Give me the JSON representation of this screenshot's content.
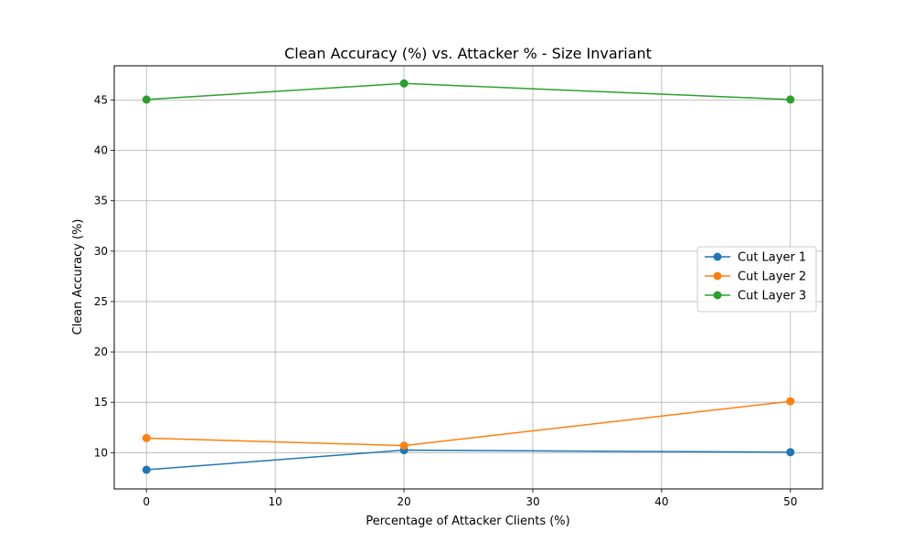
{
  "chart_data": {
    "type": "line",
    "title": "Clean Accuracy (%) vs. Attacker % - Size Invariant",
    "xlabel": "Percentage of Attacker Clients (%)",
    "ylabel": "Clean Accuracy (%)",
    "x": [
      0,
      20,
      50
    ],
    "xlim": [
      -2.5,
      52.5
    ],
    "ylim": [
      6.4,
      48.4
    ],
    "xticks": [
      0,
      10,
      20,
      30,
      40,
      50
    ],
    "yticks": [
      10,
      15,
      20,
      25,
      30,
      35,
      40,
      45
    ],
    "grid": true,
    "legend_position": "center-right",
    "series": [
      {
        "name": "Cut Layer 1",
        "color": "#1f77b4",
        "values": [
          8.3,
          10.25,
          10.05
        ]
      },
      {
        "name": "Cut Layer 2",
        "color": "#ff7f0e",
        "values": [
          11.45,
          10.7,
          15.1
        ]
      },
      {
        "name": "Cut Layer 3",
        "color": "#2ca02c",
        "values": [
          45.05,
          46.65,
          45.05
        ]
      }
    ]
  }
}
